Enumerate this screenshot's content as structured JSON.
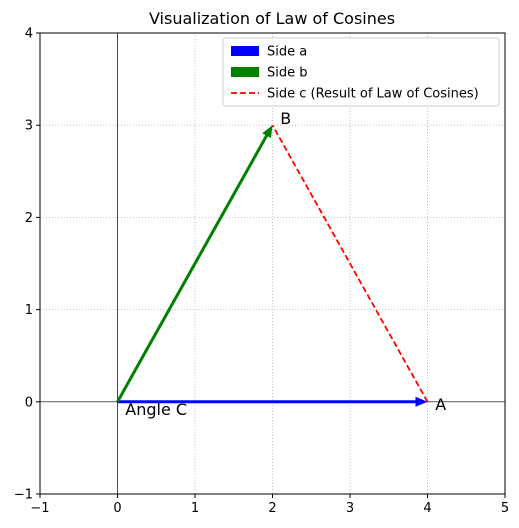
{
  "chart_data": {
    "type": "line",
    "title": "Visualization of Law of Cosines",
    "xlabel": "",
    "ylabel": "",
    "xlim": [
      -1,
      5
    ],
    "ylim": [
      -1,
      4
    ],
    "xticks": [
      -1,
      0,
      1,
      2,
      3,
      4,
      5
    ],
    "yticks": [
      -1,
      0,
      1,
      2,
      3,
      4
    ],
    "xtick_labels": [
      "−1",
      "0",
      "1",
      "2",
      "3",
      "4",
      "5"
    ],
    "ytick_labels": [
      "−1",
      "0",
      "1",
      "2",
      "3",
      "4"
    ],
    "grid": true,
    "grid_style": "dotted",
    "axis_lines_at_zero": true,
    "legend_position": "top-right",
    "series": [
      {
        "name": "Side a",
        "style": "arrow",
        "color": "#0000ff",
        "from": [
          0,
          0
        ],
        "to": [
          4,
          0
        ]
      },
      {
        "name": "Side b",
        "style": "arrow",
        "color": "#008000",
        "from": [
          0,
          0
        ],
        "to": [
          2,
          3
        ]
      },
      {
        "name": "Side c (Result of Law of Cosines)",
        "style": "dashed",
        "color": "#ff0000",
        "x": [
          4,
          2
        ],
        "y": [
          0,
          3
        ]
      }
    ],
    "annotations": [
      {
        "text": "A",
        "x": 4.1,
        "y": 0
      },
      {
        "text": "B",
        "x": 2.1,
        "y": 3.1
      },
      {
        "text": "Angle C",
        "x": 0.1,
        "y": -0.1
      }
    ]
  }
}
